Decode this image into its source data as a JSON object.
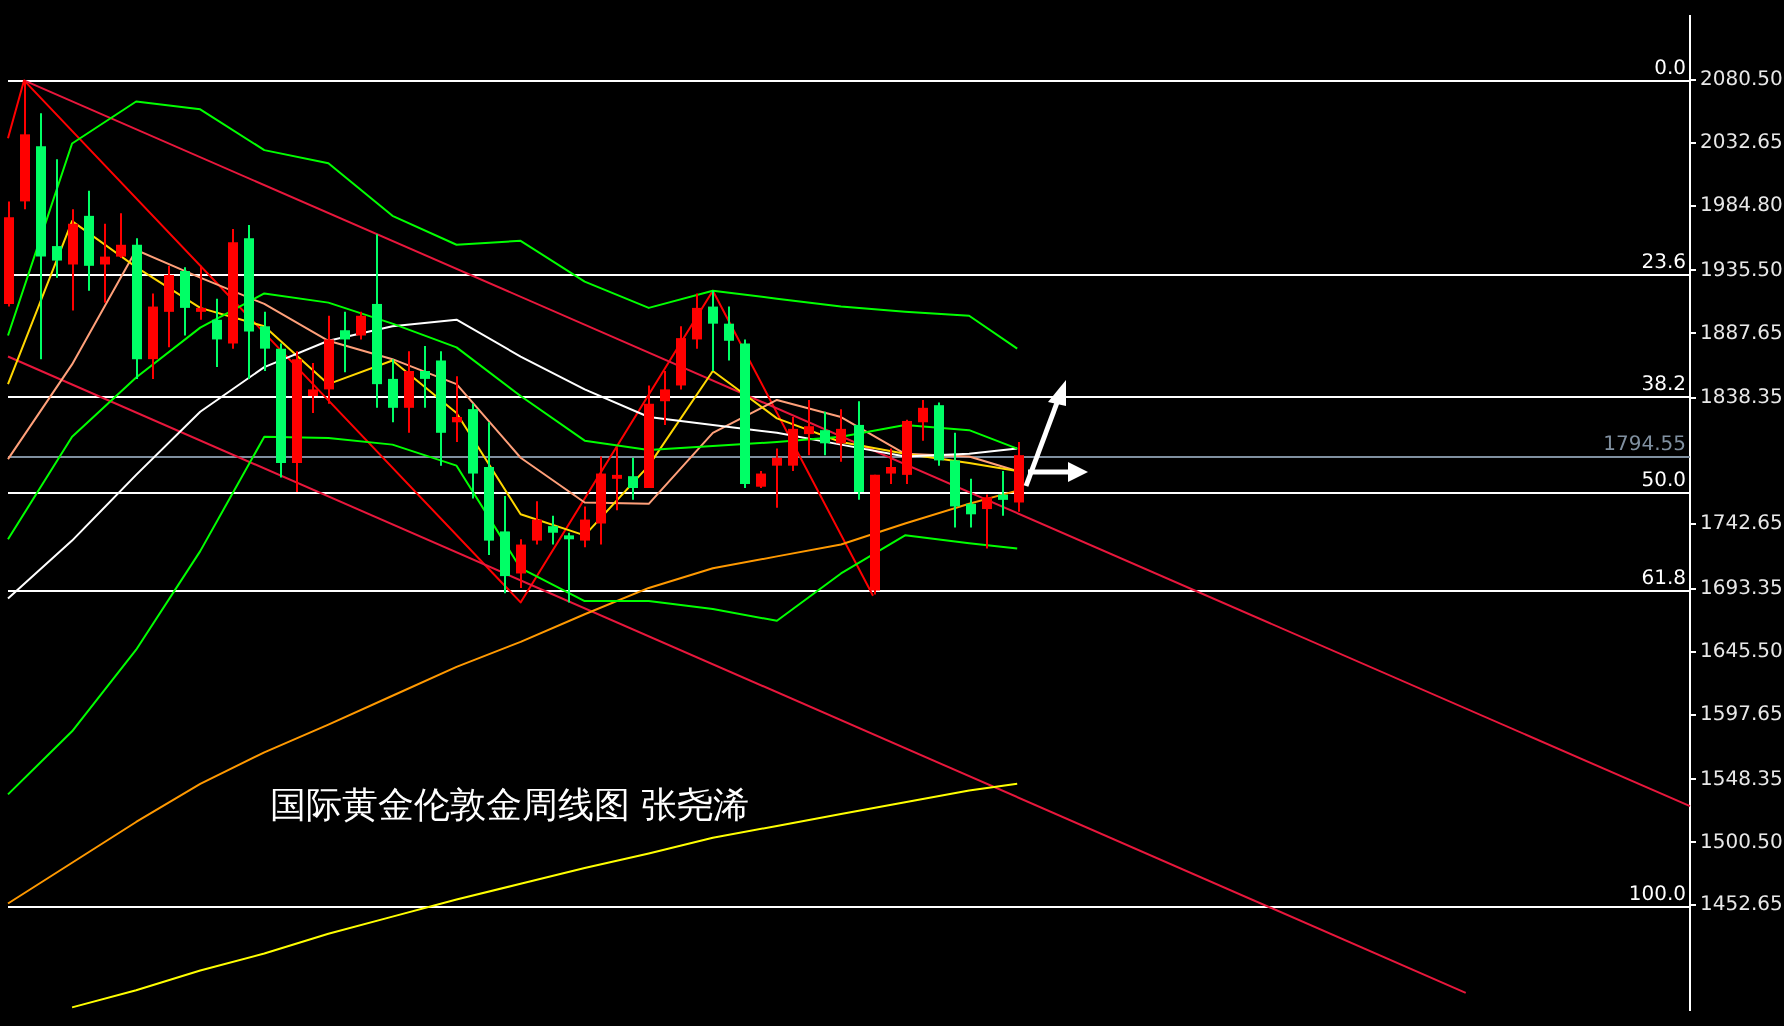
{
  "chart_data": {
    "type": "candlestick",
    "categories": [
      null,
      null,
      null,
      null,
      null,
      null,
      null,
      null,
      null,
      null,
      null,
      null,
      null,
      null,
      null,
      null,
      null,
      null,
      null,
      null,
      null,
      null,
      null,
      null,
      null,
      null,
      null,
      null,
      null,
      null,
      null,
      null,
      null,
      null,
      null,
      null,
      null,
      null,
      null,
      null,
      null,
      null,
      null,
      null,
      null,
      null,
      null,
      null,
      null,
      null,
      null,
      null,
      null,
      null,
      null,
      null,
      null,
      null,
      null,
      null,
      null,
      null,
      null,
      null,
      null,
      null,
      null,
      null,
      null,
      null,
      null,
      null,
      null,
      null,
      null,
      null,
      null,
      null,
      null,
      null,
      null,
      null,
      null,
      null,
      null,
      null,
      null,
      null,
      null,
      null,
      null,
      null,
      null,
      null,
      null,
      null,
      null,
      null,
      null,
      null,
      null,
      null,
      null,
      null,
      null,
      null
    ],
    "ohlc": [
      [
        1910,
        1988,
        1908,
        1976
      ],
      [
        1988,
        2080,
        1982,
        2039
      ],
      [
        2030,
        2055,
        1868,
        1946
      ],
      [
        1954,
        2020,
        1930,
        1943
      ],
      [
        1940,
        1982,
        1905,
        1971
      ],
      [
        1977,
        1996,
        1920,
        1939
      ],
      [
        1940,
        1971,
        1911,
        1946
      ],
      [
        1946,
        1979,
        1945,
        1955
      ],
      [
        1955,
        1960,
        1853,
        1868
      ],
      [
        1868,
        1918,
        1853,
        1908
      ],
      [
        1904,
        1939,
        1877,
        1932
      ],
      [
        1935,
        1938,
        1886,
        1907
      ],
      [
        1904,
        1939,
        1898,
        1907
      ],
      [
        1898,
        1914,
        1862,
        1883
      ],
      [
        1880,
        1967,
        1876,
        1957
      ],
      [
        1960,
        1970,
        1853,
        1889
      ],
      [
        1893,
        1904,
        1859,
        1876
      ],
      [
        1876,
        1880,
        1778,
        1789
      ],
      [
        1789,
        1874,
        1767,
        1868
      ],
      [
        1840,
        1865,
        1827,
        1845
      ],
      [
        1845,
        1901,
        1834,
        1883
      ],
      [
        1890,
        1904,
        1858,
        1883
      ],
      [
        1886,
        1904,
        1883,
        1901
      ],
      [
        1910,
        1963,
        1831,
        1849
      ],
      [
        1853,
        1868,
        1820,
        1831
      ],
      [
        1831,
        1874,
        1812,
        1859
      ],
      [
        1859,
        1878,
        1831,
        1853
      ],
      [
        1867,
        1874,
        1787,
        1812
      ],
      [
        1820,
        1855,
        1805,
        1824
      ],
      [
        1830,
        1834,
        1762,
        1781
      ],
      [
        1786,
        1820,
        1719,
        1730
      ],
      [
        1737,
        1764,
        1690,
        1703
      ],
      [
        1705,
        1731,
        1694,
        1727
      ],
      [
        1730,
        1760,
        1727,
        1746
      ],
      [
        1741,
        1749,
        1727,
        1736
      ],
      [
        1734,
        1736,
        1683,
        1731
      ],
      [
        1730,
        1756,
        1725,
        1746
      ],
      [
        1743,
        1794,
        1727,
        1781
      ],
      [
        1777,
        1801,
        1753,
        1780
      ],
      [
        1779,
        1793,
        1761,
        1770
      ],
      [
        1770,
        1848,
        1770,
        1834
      ],
      [
        1836,
        1859,
        1818,
        1845
      ],
      [
        1848,
        1893,
        1845,
        1884
      ],
      [
        1883,
        1918,
        1876,
        1907
      ],
      [
        1908,
        1920,
        1859,
        1895
      ],
      [
        1895,
        1908,
        1867,
        1882
      ],
      [
        1880,
        1883,
        1770,
        1773
      ],
      [
        1771,
        1783,
        1770,
        1781
      ],
      [
        1787,
        1800,
        1755,
        1793
      ],
      [
        1787,
        1824,
        1783,
        1815
      ],
      [
        1811,
        1837,
        1795,
        1817
      ],
      [
        1814,
        1828,
        1795,
        1804
      ],
      [
        1804,
        1830,
        1790,
        1815
      ],
      [
        1818,
        1836,
        1761,
        1767
      ],
      [
        1692,
        1780,
        1689,
        1780
      ],
      [
        1781,
        1800,
        1773,
        1786
      ],
      [
        1780,
        1822,
        1773,
        1821
      ],
      [
        1820,
        1837,
        1806,
        1831
      ],
      [
        1833,
        1835,
        1787,
        1791
      ],
      [
        1791,
        1812,
        1740,
        1756
      ],
      [
        1758,
        1777,
        1740,
        1750
      ],
      [
        1754,
        1765,
        1724,
        1763
      ],
      [
        1765,
        1783,
        1749,
        1761
      ],
      [
        1759,
        1805,
        1752,
        1795
      ],
      null,
      null,
      null,
      null,
      null,
      null,
      null,
      null,
      null,
      null,
      null,
      null,
      null,
      null,
      null,
      null,
      null,
      null,
      null,
      null,
      null,
      null,
      null,
      null,
      null,
      null,
      null,
      null,
      null,
      null,
      null,
      null,
      null,
      null,
      null,
      null,
      null,
      null,
      null,
      null,
      null,
      null
    ],
    "series": [
      {
        "type": "line",
        "color": "#00ff00",
        "values": [
          1886,
          null,
          null,
          null,
          2032,
          null,
          null,
          null,
          2064,
          null,
          null,
          null,
          2058,
          null,
          null,
          null,
          2027,
          null,
          null,
          null,
          2017,
          null,
          null,
          null,
          1977,
          null,
          null,
          null,
          1955,
          null,
          null,
          null,
          1958,
          null,
          null,
          null,
          1927,
          null,
          null,
          null,
          1907,
          null,
          null,
          null,
          1920,
          null,
          null,
          null,
          1914,
          null,
          null,
          null,
          1908,
          null,
          null,
          null,
          1904,
          null,
          null,
          null,
          1901,
          null,
          null,
          1876,
          null,
          null,
          null,
          null,
          null,
          null,
          null,
          null,
          null,
          null,
          null,
          null,
          null,
          null,
          null,
          null,
          null,
          null,
          null,
          null,
          null,
          null,
          null,
          null,
          null,
          null,
          null,
          null,
          null,
          null,
          null,
          null,
          null,
          null,
          null,
          null,
          null,
          null,
          null,
          null,
          null,
          null
        ]
      },
      {
        "type": "line",
        "color": "#00ff00",
        "values": [
          1731,
          null,
          null,
          null,
          1809,
          null,
          null,
          null,
          1854,
          null,
          null,
          null,
          1892,
          null,
          null,
          null,
          1918,
          null,
          null,
          null,
          1911,
          null,
          null,
          null,
          1895,
          null,
          null,
          null,
          1877,
          null,
          null,
          null,
          1840,
          null,
          null,
          null,
          1806,
          null,
          null,
          null,
          1799,
          null,
          null,
          null,
          1802,
          null,
          null,
          null,
          1805,
          null,
          null,
          null,
          1809,
          null,
          null,
          null,
          1818,
          null,
          null,
          null,
          1814,
          null,
          null,
          1800,
          null,
          null,
          null,
          null,
          null,
          null,
          null,
          null,
          null,
          null,
          null,
          null,
          null,
          null,
          null,
          null,
          null,
          null,
          null,
          null,
          null,
          null,
          null,
          null,
          null,
          null,
          null,
          null,
          null,
          null,
          null,
          null,
          null,
          null,
          null,
          null,
          null,
          null,
          null,
          null,
          null,
          null
        ]
      },
      {
        "type": "line",
        "color": "#00ff00",
        "values": [
          1537,
          null,
          null,
          null,
          1585,
          null,
          null,
          null,
          1647,
          null,
          null,
          null,
          1722,
          null,
          null,
          null,
          1809,
          null,
          null,
          null,
          1808,
          null,
          null,
          null,
          1803,
          null,
          null,
          null,
          1787,
          null,
          null,
          null,
          1709,
          null,
          null,
          null,
          1684,
          null,
          null,
          null,
          1684,
          null,
          null,
          null,
          1678,
          null,
          null,
          null,
          1669,
          null,
          null,
          null,
          1705,
          null,
          null,
          null,
          1734,
          null,
          null,
          null,
          1728,
          null,
          null,
          1724,
          null,
          null,
          null,
          null,
          null,
          null,
          null,
          null,
          null,
          null,
          null,
          null,
          null,
          null,
          null,
          null,
          null,
          null,
          null,
          null,
          null,
          null,
          null,
          null,
          null,
          null,
          null,
          null,
          null,
          null,
          null,
          null,
          null,
          null,
          null,
          null,
          null,
          null,
          null,
          null,
          null,
          null
        ]
      },
      {
        "type": "line",
        "color": "#ffffff",
        "values": [
          1686,
          null,
          null,
          null,
          1730,
          null,
          null,
          null,
          1780,
          null,
          null,
          null,
          1828,
          null,
          null,
          null,
          1862,
          null,
          null,
          null,
          1882,
          null,
          null,
          null,
          1893,
          null,
          null,
          null,
          1898,
          null,
          null,
          null,
          1870,
          null,
          null,
          null,
          1845,
          null,
          null,
          null,
          1824,
          null,
          null,
          null,
          1818,
          null,
          null,
          null,
          1812,
          null,
          null,
          null,
          1803,
          null,
          null,
          null,
          1794,
          null,
          null,
          null,
          1796,
          null,
          null,
          1800,
          null,
          null,
          null,
          null,
          null,
          null,
          null,
          null,
          null,
          null,
          null,
          null,
          null,
          null,
          null,
          null,
          null,
          null,
          null,
          null,
          null,
          null,
          null,
          null,
          null,
          null,
          null,
          null,
          null,
          null,
          null,
          null,
          null,
          null,
          null,
          null,
          null,
          null,
          null,
          null,
          null,
          null
        ]
      },
      {
        "type": "line",
        "color": "#ff9900",
        "values": [
          1454,
          null,
          null,
          null,
          1485,
          null,
          null,
          null,
          1516,
          null,
          null,
          null,
          1545,
          null,
          null,
          null,
          1569,
          null,
          null,
          null,
          1590,
          null,
          null,
          null,
          1612,
          null,
          null,
          null,
          1634,
          null,
          null,
          null,
          1653,
          null,
          null,
          null,
          1674,
          null,
          null,
          null,
          1694,
          null,
          null,
          null,
          1709,
          null,
          null,
          null,
          1718,
          null,
          null,
          null,
          1727,
          null,
          null,
          null,
          1743,
          null,
          null,
          null,
          1758,
          null,
          null,
          1768,
          null,
          null,
          null,
          null,
          null,
          null,
          null,
          null,
          null,
          null,
          null,
          null,
          null,
          null,
          null,
          null,
          null,
          null,
          null,
          null,
          null,
          null,
          null,
          null,
          null,
          null,
          null,
          null,
          null,
          null,
          null,
          null,
          null,
          null,
          null,
          null,
          null,
          null,
          null,
          null,
          null,
          null
        ]
      },
      {
        "type": "line",
        "color": "#ffff00",
        "values": [
          null,
          null,
          null,
          null,
          1375,
          null,
          null,
          null,
          1388,
          null,
          null,
          null,
          1403,
          null,
          null,
          null,
          1416,
          null,
          null,
          null,
          1431,
          null,
          null,
          null,
          1444,
          null,
          null,
          null,
          1457,
          null,
          null,
          null,
          1469,
          null,
          null,
          null,
          1481,
          null,
          null,
          null,
          1492,
          null,
          null,
          null,
          1504,
          null,
          null,
          null,
          1513,
          null,
          null,
          null,
          1522,
          null,
          null,
          null,
          1531,
          null,
          null,
          null,
          1540,
          null,
          null,
          1545,
          null,
          null,
          null,
          null,
          null,
          null,
          null,
          null,
          null,
          null,
          null,
          null,
          null,
          null,
          null,
          null,
          null,
          null,
          null,
          null,
          null,
          null,
          null,
          null,
          null,
          null,
          null,
          null,
          null,
          null,
          null,
          null,
          null,
          null,
          null,
          null,
          null,
          null,
          null,
          null,
          null,
          null
        ]
      },
      {
        "type": "line",
        "color": "#ffd700",
        "values": [
          1849,
          null,
          null,
          null,
          1973,
          null,
          null,
          null,
          1938,
          null,
          null,
          null,
          1907,
          null,
          null,
          null,
          1893,
          null,
          null,
          null,
          1849,
          null,
          null,
          null,
          1867,
          null,
          null,
          null,
          1827,
          null,
          null,
          null,
          1750,
          null,
          null,
          null,
          1734,
          null,
          null,
          null,
          1787,
          null,
          null,
          null,
          1859,
          null,
          null,
          null,
          1823,
          null,
          null,
          null,
          1805,
          null,
          null,
          null,
          1796,
          null,
          null,
          null,
          1789,
          null,
          null,
          1783,
          null,
          null,
          null,
          null,
          null,
          null,
          null,
          null,
          null,
          null,
          null,
          null,
          null,
          null,
          null,
          null,
          null,
          null,
          null,
          null,
          null,
          null,
          null,
          null,
          null,
          null,
          null,
          null,
          null,
          null,
          null,
          null,
          null,
          null,
          null,
          null,
          null,
          null,
          null,
          null,
          null,
          null
        ]
      },
      {
        "type": "line",
        "color": "#ffa07a",
        "values": [
          1792,
          null,
          null,
          null,
          1864,
          null,
          null,
          null,
          1951,
          null,
          null,
          null,
          1930,
          null,
          null,
          null,
          1910,
          null,
          null,
          null,
          1882,
          null,
          null,
          null,
          1868,
          null,
          null,
          null,
          1849,
          null,
          null,
          null,
          1793,
          null,
          null,
          null,
          1759,
          null,
          null,
          null,
          1758,
          null,
          null,
          null,
          1812,
          null,
          null,
          null,
          1837,
          null,
          null,
          null,
          1824,
          null,
          null,
          null,
          1796,
          null,
          null,
          null,
          1794,
          null,
          null,
          1783,
          null,
          null,
          null,
          null,
          null,
          null,
          null,
          null,
          null,
          null,
          null,
          null,
          null,
          null,
          null,
          null,
          null,
          null,
          null,
          null,
          null,
          null,
          null,
          null,
          null,
          null,
          null,
          null,
          null,
          null,
          null,
          null,
          null,
          null,
          null,
          null,
          null,
          null,
          null,
          null,
          null,
          null
        ]
      },
      {
        "type": "line",
        "color": "#e8173c",
        "values": [
          null,
          2080,
          null,
          null,
          null,
          null,
          null,
          null,
          null,
          null,
          null,
          null,
          null,
          null,
          null,
          null,
          null,
          null,
          null,
          null,
          null,
          null,
          null,
          null,
          null,
          null,
          null,
          null,
          null,
          null,
          null,
          null,
          null,
          null,
          null,
          null,
          null,
          null,
          null,
          null,
          null,
          null,
          null,
          null,
          null,
          null,
          null,
          null,
          null,
          null,
          null,
          null,
          null,
          null,
          null,
          null,
          null,
          null,
          null,
          null,
          null,
          null,
          null,
          null,
          null,
          null,
          null,
          null,
          null,
          null,
          null,
          null,
          null,
          null,
          null,
          null,
          null,
          null,
          null,
          null,
          null,
          null,
          null,
          null,
          null,
          null,
          null,
          null,
          null,
          null,
          null,
          null,
          null,
          null,
          null,
          null,
          null,
          null,
          null,
          null,
          null,
          null,
          null,
          null,
          null,
          1528
        ]
      },
      {
        "type": "line",
        "color": "#e8173c",
        "values": [
          1870,
          null,
          null,
          null,
          null,
          null,
          null,
          null,
          null,
          null,
          null,
          null,
          null,
          null,
          null,
          null,
          null,
          null,
          null,
          null,
          null,
          null,
          null,
          null,
          null,
          null,
          null,
          null,
          null,
          null,
          null,
          null,
          null,
          null,
          null,
          null,
          null,
          null,
          null,
          null,
          null,
          null,
          null,
          null,
          null,
          null,
          null,
          null,
          null,
          null,
          null,
          null,
          null,
          null,
          null,
          null,
          null,
          null,
          null,
          null,
          null,
          null,
          null,
          null,
          null,
          null,
          null,
          null,
          null,
          null,
          null,
          null,
          null,
          null,
          null,
          null,
          null,
          null,
          null,
          null,
          null,
          null,
          null,
          null,
          null,
          null,
          null,
          null,
          null,
          null,
          null,
          1386,
          null,
          null,
          null,
          null,
          null,
          null,
          null,
          null,
          null,
          null,
          null,
          null,
          null,
          null
        ]
      },
      {
        "type": "line",
        "color": "#ff0000",
        "values": [
          2036,
          2080,
          null,
          null,
          null,
          null,
          null,
          null,
          null,
          null,
          null,
          null,
          null,
          null,
          null,
          null,
          null,
          null,
          null,
          null,
          null,
          null,
          null,
          null,
          null,
          null,
          null,
          null,
          null,
          null,
          null,
          null,
          1683,
          null,
          null,
          null,
          null,
          null,
          null,
          null,
          null,
          null,
          null,
          null,
          1920,
          null,
          null,
          null,
          null,
          null,
          null,
          null,
          null,
          null,
          1688,
          null,
          null,
          null,
          null,
          null,
          null,
          null,
          null,
          null,
          null,
          null,
          null,
          null,
          null,
          null,
          null,
          null,
          null,
          null,
          null,
          null,
          null,
          null,
          null,
          null,
          null,
          null,
          null,
          null,
          null,
          null,
          null,
          null,
          null,
          null,
          null,
          null,
          null,
          null,
          null,
          null,
          null,
          null,
          null,
          null,
          null,
          null,
          null,
          null,
          null,
          null
        ]
      }
    ],
    "ylim": [
      1373,
      2129
    ],
    "yticks": [
      {
        "value": 2080.5,
        "label": "2080.50"
      },
      {
        "value": 2032.65,
        "label": "2032.65"
      },
      {
        "value": 1984.8,
        "label": "1984.80"
      },
      {
        "value": 1935.5,
        "label": "1935.50"
      },
      {
        "value": 1887.65,
        "label": "1887.65"
      },
      {
        "value": 1838.35,
        "label": "1838.35"
      },
      {
        "value": 1742.65,
        "label": "1742.65"
      },
      {
        "value": 1693.35,
        "label": "1693.35"
      },
      {
        "value": 1645.5,
        "label": "1645.50"
      },
      {
        "value": 1597.65,
        "label": "1597.65"
      },
      {
        "value": 1548.35,
        "label": "1548.35"
      },
      {
        "value": 1500.5,
        "label": "1500.50"
      },
      {
        "value": 1452.65,
        "label": "1452.65"
      }
    ],
    "ref_lines": [
      {
        "axis": "y",
        "value": 2080.5,
        "color": "#ffffff"
      },
      {
        "axis": "y",
        "value": 1932.3,
        "color": "#ffffff"
      },
      {
        "axis": "y",
        "value": 1840.7,
        "color": "#ffffff"
      },
      {
        "axis": "y",
        "value": 1766.6,
        "color": "#ffffff"
      },
      {
        "axis": "y",
        "value": 1692.5,
        "color": "#ffffff"
      },
      {
        "axis": "y",
        "value": 1452.65,
        "color": "#ffffff"
      },
      {
        "axis": "y",
        "value": 1794.55,
        "label": "1794.55",
        "color": "#8090a0"
      }
    ],
    "annotations": [
      "国际黄金伦敦金周线图 张尧浠",
      {
        "text": "0.0",
        "y": 2080.5
      },
      {
        "text": "23.6",
        "y": 1932.3
      },
      {
        "text": "38.2",
        "y": 1840.7
      },
      {
        "text": "50.0",
        "y": 1766.6
      },
      {
        "text": "61.8",
        "y": 1692.5
      },
      {
        "text": "100.0",
        "y": 1452.65
      }
    ],
    "tick_labels": "y",
    "grid": false,
    "legend": false
  }
}
